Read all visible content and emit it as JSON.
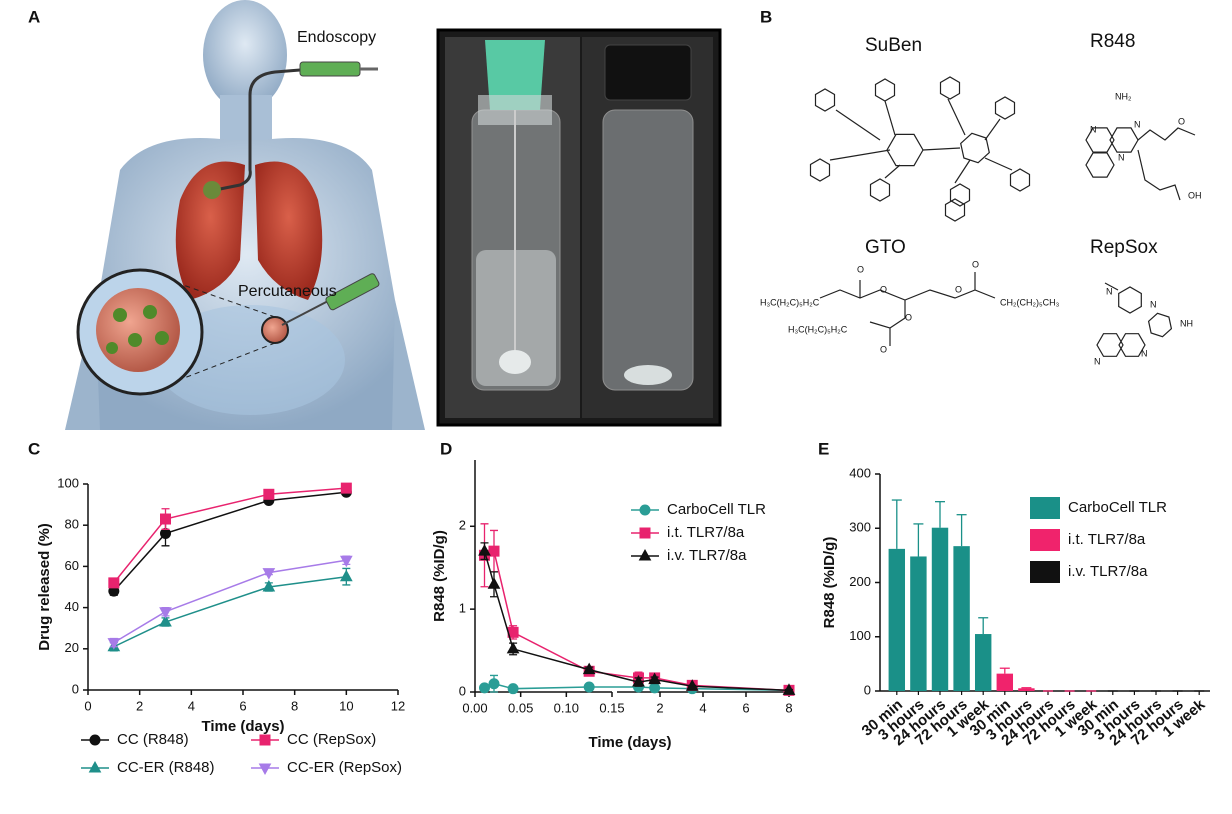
{
  "panel_labels": [
    "A",
    "B",
    "C",
    "D",
    "E"
  ],
  "illustration": {
    "endoscopy": "Endoscopy",
    "percutaneous": "Percutaneous"
  },
  "structures": {
    "names": [
      "SuBen",
      "R848",
      "GTO",
      "RepSox"
    ],
    "atoms": [
      "NH₂",
      "N",
      "N",
      "N",
      "O",
      "OH",
      "N",
      "N",
      "NH",
      "N",
      "N",
      "H₃C(H₂C)₅H₂C",
      "CH₂(CH₂)₅CH₃",
      "H₃C(H₂C)₅H₂C",
      "O",
      "O",
      "O",
      "O",
      "O",
      "O"
    ]
  },
  "chart_data": [
    {
      "type": "line",
      "x_label": "Time (days)",
      "y_label": "Drug released (%)",
      "x": [
        1,
        3,
        7,
        10
      ],
      "xlim": [
        0,
        12
      ],
      "xticks": [
        0,
        2,
        4,
        6,
        8,
        10,
        12
      ],
      "ylim": [
        0,
        100
      ],
      "yticks": [
        0,
        20,
        40,
        60,
        80,
        100
      ],
      "series": [
        {
          "name": "CC (R848)",
          "color": "#111111",
          "marker": "circle",
          "values": [
            48,
            76,
            92,
            96
          ],
          "errors": [
            2,
            6,
            1,
            1
          ]
        },
        {
          "name": "CC (RepSox)",
          "color": "#e8236e",
          "marker": "square",
          "values": [
            52,
            83,
            95,
            98
          ],
          "errors": [
            2,
            5,
            1,
            1
          ]
        },
        {
          "name": "CC-ER (R848)",
          "color": "#1f8f8a",
          "marker": "triangle-up",
          "values": [
            21,
            33,
            50,
            55
          ],
          "errors": [
            2,
            2,
            2,
            4
          ]
        },
        {
          "name": "CC-ER (RepSox)",
          "color": "#a77be8",
          "marker": "triangle-down",
          "values": [
            23,
            38,
            57,
            63
          ],
          "errors": [
            2,
            2,
            1,
            2
          ]
        }
      ]
    },
    {
      "type": "line",
      "x_label": "Time (days)",
      "y_label": "R848 (%ID/g)",
      "x": [
        0.0104,
        0.0208,
        0.0417,
        0.125,
        1,
        1.75,
        3.5,
        8
      ],
      "x_segments": [
        {
          "xlim": [
            0,
            0.15
          ],
          "xticks": [
            {
              "value": 0,
              "label": "0.00"
            },
            0.05,
            {
              "value": 0.1,
              "label": "0.10"
            },
            0.15
          ]
        },
        {
          "xlim": [
            0,
            8
          ],
          "xticks": [
            2,
            4,
            6,
            8
          ]
        }
      ],
      "ylim": [
        0,
        2.8
      ],
      "yticks": [
        0,
        1,
        2
      ],
      "series": [
        {
          "name": "CarboCell TLR",
          "color": "#2a9d96",
          "marker": "circle",
          "values": [
            0.05,
            0.1,
            0.04,
            0.06,
            0.06,
            0.05,
            0.04,
            0.02
          ],
          "errors": [
            0.03,
            0.1,
            0.02,
            0.02,
            0.02,
            0.02,
            0.02,
            0.01
          ]
        },
        {
          "name": "i.t. TLR7/8a",
          "color": "#e8236e",
          "marker": "square",
          "values": [
            1.65,
            1.7,
            0.72,
            0.25,
            0.17,
            0.17,
            0.08,
            0.02
          ],
          "errors": [
            0.38,
            0.25,
            0.08,
            0.03,
            0.07,
            0.05,
            0.02,
            0.01
          ]
        },
        {
          "name": "i.v. TLR7/8a",
          "color": "#111111",
          "marker": "triangle-up",
          "values": [
            1.7,
            1.3,
            0.52,
            0.27,
            0.12,
            0.15,
            0.07,
            0.02
          ],
          "errors": [
            0.1,
            0.15,
            0.07,
            0.03,
            0.05,
            0.03,
            0.01,
            0.01
          ]
        }
      ]
    },
    {
      "type": "bar",
      "y_label": "R848 (%ID/g)",
      "categories": [
        "30 min",
        "3 hours",
        "24 hours",
        "72 hours",
        "1 week",
        "30 min",
        "3 hours",
        "24 hours",
        "72 hours",
        "1 week",
        "30 min",
        "3 hours",
        "24 hours",
        "72 hours",
        "1 week"
      ],
      "ylim": [
        0,
        400
      ],
      "yticks": [
        0,
        100,
        200,
        300,
        400
      ],
      "series": [
        {
          "name": "CarboCell TLR",
          "color": "#1a9088",
          "values": [
            262,
            248,
            301,
            267,
            105,
            null,
            null,
            null,
            null,
            null,
            null,
            null,
            null,
            null,
            null
          ],
          "errors": [
            90,
            60,
            48,
            58,
            30,
            null,
            null,
            null,
            null,
            null,
            null,
            null,
            null,
            null,
            null
          ]
        },
        {
          "name": "i.t. TLR7/8a",
          "color": "#f0236c",
          "values": [
            null,
            null,
            null,
            null,
            null,
            32,
            5,
            0,
            0,
            0,
            null,
            null,
            null,
            null,
            null
          ],
          "errors": [
            null,
            null,
            null,
            null,
            null,
            10,
            1,
            0,
            0,
            0,
            null,
            null,
            null,
            null,
            null
          ]
        },
        {
          "name": "i.v. TLR7/8a",
          "color": "#111111",
          "values": [
            null,
            null,
            null,
            null,
            null,
            null,
            null,
            null,
            null,
            null,
            0,
            0,
            0,
            0,
            0
          ],
          "errors": [
            null,
            null,
            null,
            null,
            null,
            null,
            null,
            null,
            null,
            null,
            0,
            0,
            0,
            0,
            0
          ]
        }
      ]
    }
  ]
}
